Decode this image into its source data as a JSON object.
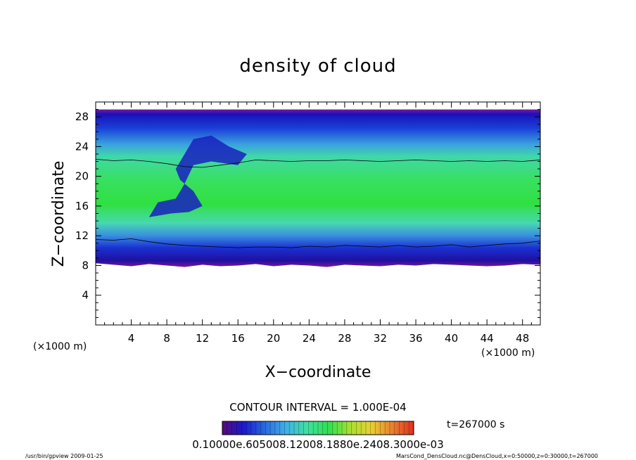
{
  "chart_data": {
    "type": "heatmap",
    "title": "density of cloud",
    "xlabel": "X−coordinate",
    "ylabel": "Z−coordinate",
    "x_unit": "(×1000 m)",
    "y_unit": "(×1000 m)",
    "xlim": [
      0,
      50
    ],
    "ylim": [
      0,
      30
    ],
    "x_ticks": [
      4,
      8,
      12,
      16,
      20,
      24,
      28,
      32,
      36,
      40,
      44,
      48
    ],
    "y_ticks": [
      4,
      8,
      12,
      16,
      20,
      24,
      28
    ],
    "contour_interval": "CONTOUR INTERVAL = 1.000E-04",
    "time_label": "t=267000 s",
    "colorbar_labels": "0.10000e.605008.12008.1880e.2408.3000e-03",
    "colorbar_colors": [
      "#5a0a7a",
      "#1a1acc",
      "#2a6ae0",
      "#40b0e8",
      "#40e0a0",
      "#30e050",
      "#a8e030",
      "#e8d030",
      "#e88030",
      "#e03020"
    ],
    "field": {
      "cloud_base_z": [
        8.3,
        8.1,
        7.9,
        8.2,
        8.0,
        7.8,
        8.1,
        7.9,
        8.0,
        8.2,
        7.9,
        8.1,
        8.0,
        7.8,
        8.1,
        8.0,
        7.9,
        8.1,
        8.0,
        8.2,
        8.1,
        8.0,
        7.9,
        8.0,
        8.2,
        8.1
      ],
      "cloud_top_z": 29,
      "lower_contour_z": [
        11.5,
        11.4,
        11.6,
        11.2,
        10.9,
        10.7,
        10.6,
        10.5,
        10.4,
        10.5,
        10.5,
        10.4,
        10.6,
        10.5,
        10.7,
        10.6,
        10.5,
        10.7,
        10.5,
        10.6,
        10.8,
        10.5,
        10.7,
        10.9,
        11.0,
        11.3
      ],
      "upper_contour_z": [
        22.3,
        22.1,
        22.2,
        22.0,
        21.7,
        21.3,
        21.2,
        21.5,
        21.8,
        22.2,
        22.1,
        22.0,
        22.1,
        22.1,
        22.2,
        22.1,
        22.0,
        22.1,
        22.2,
        22.1,
        22.0,
        22.1,
        22.0,
        22.1,
        22.0,
        22.2
      ]
    }
  },
  "footer": {
    "left": "/usr/bin/gpview   2009-01-25",
    "right": "MarsCond_DensCloud.nc@DensCloud,x=0:50000,z=0:30000,t=267000"
  }
}
